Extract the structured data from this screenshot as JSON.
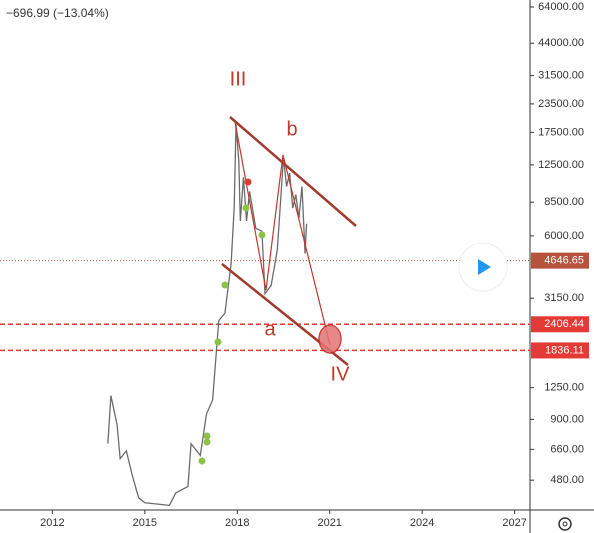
{
  "chart_data": {
    "type": "line",
    "header": "−696.99 (−13.04%)",
    "yscale": "log",
    "grid": false,
    "color": "#6b6b6b",
    "x": [
      2013.8,
      2013.9,
      2014.1,
      2014.2,
      2014.4,
      2014.6,
      2014.8,
      2015.0,
      2015.8,
      2016.0,
      2016.4,
      2016.5,
      2016.8,
      2017.0,
      2017.2,
      2017.4,
      2017.6,
      2017.8,
      2017.9,
      2017.96,
      2018.05,
      2018.1,
      2018.2,
      2018.3,
      2018.4,
      2018.6,
      2018.8,
      2018.9,
      2019.1,
      2019.3,
      2019.5,
      2019.6,
      2019.7,
      2019.8,
      2019.9,
      2020.0,
      2020.1,
      2020.2,
      2020.25
    ],
    "values": [
      700,
      1150,
      850,
      600,
      650,
      500,
      400,
      380,
      370,
      420,
      450,
      700,
      620,
      950,
      1100,
      2500,
      2700,
      4500,
      8000,
      19000,
      13000,
      7000,
      11000,
      7000,
      9500,
      6500,
      6300,
      3300,
      3600,
      5200,
      13500,
      10000,
      11500,
      8000,
      9200,
      7200,
      10000,
      5000,
      6800
    ],
    "xlim": [
      2010.3,
      2027.5
    ],
    "xticks": [
      2012,
      2015,
      2018,
      2021,
      2024,
      2027
    ],
    "ylim": [
      360,
      64000
    ],
    "yticks": [
      {
        "value": 64000,
        "label": "64000.00"
      },
      {
        "value": 44000,
        "label": "44000.00"
      },
      {
        "value": 31500,
        "label": "31500.00"
      },
      {
        "value": 23500,
        "label": "23500.00"
      },
      {
        "value": 17500,
        "label": "17500.00"
      },
      {
        "value": 12500,
        "label": "12500.00"
      },
      {
        "value": 8500,
        "label": "8500.00"
      },
      {
        "value": 6000,
        "label": "6000.00"
      },
      {
        "value": 3150,
        "label": "3150.00"
      },
      {
        "value": 1250,
        "label": "1250.00"
      },
      {
        "value": 900,
        "label": "900.00"
      },
      {
        "value": 660,
        "label": "660.00"
      },
      {
        "value": 480,
        "label": "480.00"
      }
    ],
    "price_lines": [
      {
        "value": 4646.65,
        "color": "#b5533c",
        "style": "dotted"
      },
      {
        "value": 2406.44,
        "color": "#e53935",
        "style": "dashed"
      },
      {
        "value": 1836.11,
        "color": "#e53935",
        "style": "dashed"
      }
    ],
    "annotations": [
      "III",
      "b",
      "a",
      "IV"
    ]
  }
}
